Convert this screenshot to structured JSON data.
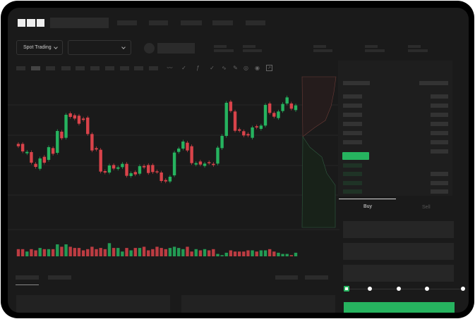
{
  "brand": {
    "logo": "OKX"
  },
  "toolbar": {
    "market_type": "Spot Trading",
    "pair_select": ""
  },
  "order_form": {
    "tabs": [
      {
        "label": "Buy",
        "active": true
      },
      {
        "label": "Sell",
        "active": false
      }
    ],
    "leverage_slider_value": 0
  },
  "colors": {
    "up": "#26b35f",
    "down": "#d9434a",
    "background": "#1a1a1a"
  },
  "icons": [
    "chevron-down-icon",
    "orderbook-both-icon",
    "orderbook-bids-icon",
    "orderbook-asks-icon",
    "indicator-icon",
    "draw-line-icon",
    "pencil-icon",
    "camera-icon",
    "settings-icon",
    "fullscreen-icon"
  ],
  "chart_data": {
    "type": "candlestick",
    "candles": [
      [
        50,
        48
      ],
      [
        50,
        43.6
      ],
      [
        42,
        43.2
      ],
      [
        43,
        34
      ],
      [
        33,
        30.4
      ],
      [
        28.8,
        37.6
      ],
      [
        39,
        34
      ],
      [
        36.4,
        47.2
      ],
      [
        46.4,
        41.6
      ],
      [
        42.4,
        61
      ],
      [
        60.4,
        54.8
      ],
      [
        55.2,
        74.8
      ],
      [
        76,
        73
      ],
      [
        74.4,
        71.6
      ],
      [
        74,
        67.2
      ],
      [
        71.6,
        70.4
      ],
      [
        72.4,
        58.4
      ],
      [
        58.4,
        44.4
      ],
      [
        46.4,
        45.2
      ],
      [
        45,
        26.4
      ],
      [
        26.8,
        25.6
      ],
      [
        25.6,
        31.6
      ],
      [
        32,
        29
      ],
      [
        28.8,
        30
      ],
      [
        30.2,
        33
      ],
      [
        33,
        22.8
      ],
      [
        22.6,
        25
      ],
      [
        26,
        24
      ],
      [
        24.6,
        31
      ],
      [
        31.2,
        30
      ],
      [
        32,
        25.2
      ],
      [
        32,
        26
      ],
      [
        26.6,
        26
      ],
      [
        25.6,
        18.4
      ],
      [
        19.2,
        18
      ],
      [
        18,
        22
      ],
      [
        23.2,
        42.6
      ],
      [
        43.2,
        46
      ],
      [
        46,
        52
      ],
      [
        51,
        44.4
      ],
      [
        48,
        33.6
      ],
      [
        32.4,
        33.6
      ],
      [
        35,
        32.4
      ],
      [
        31.2,
        33.2
      ],
      [
        34.4,
        33.6
      ],
      [
        33,
        32
      ],
      [
        33.2,
        46.8
      ],
      [
        46.4,
        56.8
      ],
      [
        56.8,
        85
      ],
      [
        86,
        78
      ],
      [
        77.6,
        61.2
      ],
      [
        62.4,
        61.2
      ],
      [
        60.8,
        57.2
      ],
      [
        58.4,
        57.2
      ],
      [
        55.2,
        64
      ],
      [
        65,
        64
      ],
      [
        62.8,
        65.6
      ],
      [
        65.6,
        83.2
      ],
      [
        84.4,
        76.4
      ],
      [
        76.4,
        73.2
      ],
      [
        72,
        77.6
      ],
      [
        78,
        84
      ],
      [
        84.4,
        89.6
      ],
      [
        84.4,
        80
      ],
      [
        78.8,
        82.8
      ]
    ],
    "volume": [
      6,
      6,
      4,
      6,
      5,
      7,
      6,
      6,
      6,
      10,
      8,
      10,
      8,
      7,
      7,
      5,
      6,
      8,
      6,
      7,
      6,
      11,
      7,
      7,
      4,
      7,
      5,
      7,
      7,
      8,
      5,
      6,
      8,
      7,
      6,
      7,
      8,
      7,
      6,
      8,
      4,
      6,
      5,
      6,
      5,
      6,
      2,
      1,
      3,
      5,
      4,
      4,
      4,
      5,
      5,
      4,
      5,
      5,
      6,
      4,
      3,
      2,
      2,
      1,
      3
    ],
    "grid": true
  }
}
